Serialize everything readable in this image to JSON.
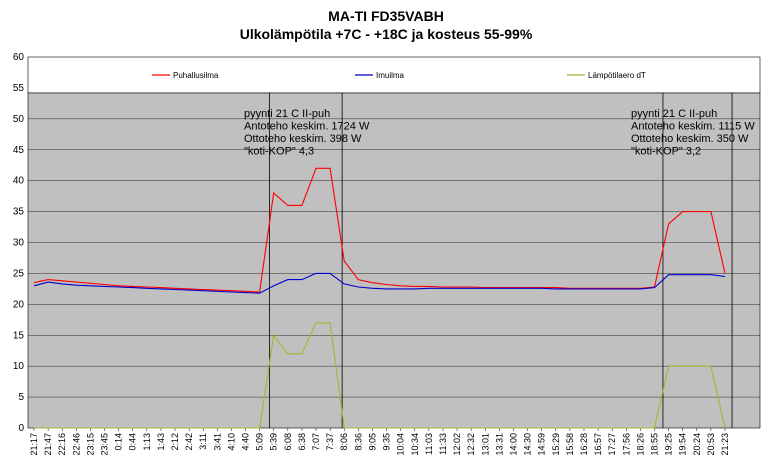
{
  "chart_data": {
    "type": "line",
    "title": "MA-TI FD35VABH",
    "subtitle": "Ulkolämpötila +7C - +18C ja kosteus 55-99%",
    "ylim": [
      0,
      60
    ],
    "yticks": [
      0,
      5,
      10,
      15,
      20,
      25,
      30,
      35,
      40,
      45,
      50,
      55,
      60
    ],
    "grid": true,
    "legend_position": "top",
    "categories": [
      "21:17",
      "21:47",
      "22:16",
      "22:46",
      "23:15",
      "23:45",
      "0:14",
      "0:44",
      "1:13",
      "1:43",
      "2:12",
      "2:42",
      "3:11",
      "3:41",
      "4:10",
      "4:40",
      "5:09",
      "5:39",
      "6:08",
      "6:38",
      "7:07",
      "7:37",
      "8:06",
      "8:36",
      "9:05",
      "9:35",
      "10:04",
      "10:34",
      "11:03",
      "11:33",
      "12:02",
      "12:32",
      "13:01",
      "13:31",
      "14:00",
      "14:30",
      "14:59",
      "15:29",
      "15:58",
      "16:28",
      "16:57",
      "17:27",
      "17:56",
      "18:26",
      "18:55",
      "19:25",
      "19:54",
      "20:24",
      "20:53",
      "21:23"
    ],
    "series": [
      {
        "name": "Puhallusilma",
        "color": "#ff0000",
        "values": [
          23.5,
          24,
          23.8,
          23.6,
          23.4,
          23.2,
          23,
          22.9,
          22.8,
          22.7,
          22.6,
          22.5,
          22.4,
          22.3,
          22.2,
          22.1,
          22,
          38,
          36,
          36,
          42,
          42,
          27,
          24,
          23.5,
          23.2,
          23,
          22.9,
          22.9,
          22.8,
          22.8,
          22.8,
          22.7,
          22.7,
          22.7,
          22.7,
          22.7,
          22.7,
          22.6,
          22.6,
          22.6,
          22.6,
          22.6,
          22.6,
          22.8,
          33,
          35,
          35,
          35,
          25
        ]
      },
      {
        "name": "Imuilma",
        "color": "#0000cc",
        "values": [
          23,
          23.6,
          23.3,
          23.1,
          23,
          22.9,
          22.8,
          22.7,
          22.6,
          22.5,
          22.4,
          22.3,
          22.2,
          22.1,
          22,
          21.9,
          21.8,
          23,
          24,
          24,
          25,
          25,
          23.3,
          22.8,
          22.6,
          22.5,
          22.5,
          22.5,
          22.6,
          22.6,
          22.6,
          22.6,
          22.6,
          22.6,
          22.6,
          22.6,
          22.6,
          22.5,
          22.5,
          22.5,
          22.5,
          22.5,
          22.5,
          22.5,
          22.7,
          24.8,
          24.8,
          24.8,
          24.8,
          24.5
        ]
      },
      {
        "name": "Lämpötilaero dT",
        "color": "#99bb33",
        "values": [
          0,
          0,
          0,
          0,
          0,
          0,
          0,
          0,
          0,
          0,
          0,
          0,
          0,
          0,
          0,
          0,
          0,
          15,
          12,
          12,
          17,
          17,
          0,
          0,
          0,
          0,
          0,
          0,
          0,
          0,
          0,
          0,
          0,
          0,
          0,
          0,
          0,
          0,
          0,
          0,
          0,
          0,
          0,
          0,
          0,
          10,
          10,
          10,
          10,
          0
        ]
      }
    ],
    "annotations": [
      {
        "lines": [
          "pyynti 21 C II-puh",
          "Antoteho keskim. 1724 W",
          "Ottoteho keskim. 398 W",
          "\"koti-KOP\" 4,3"
        ]
      },
      {
        "lines": [
          "pyynti 21 C II-puh",
          "Antoteho keskim. 1115 W",
          "Ottoteho keskim. 350 W",
          "\"koti-KOP\" 3,2"
        ]
      }
    ]
  }
}
